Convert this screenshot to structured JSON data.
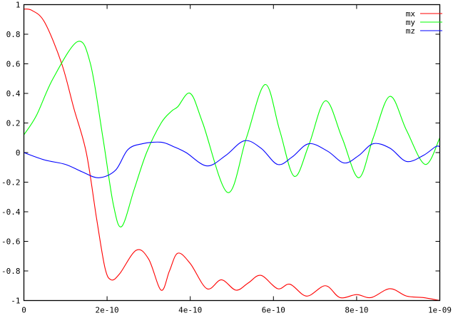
{
  "chart_data": {
    "type": "line",
    "title": "",
    "xlabel": "",
    "ylabel": "",
    "xlim": [
      0,
      1e-09
    ],
    "ylim": [
      -1,
      1
    ],
    "grid": false,
    "legend_placement": "top-right",
    "xticks": [
      0,
      2e-10,
      4e-10,
      6e-10,
      8e-10,
      1e-09
    ],
    "xtick_labels": [
      "0",
      "2e-10",
      "4e-10",
      "6e-10",
      "8e-10",
      "1e-09"
    ],
    "yticks": [
      -1,
      -0.8,
      -0.6,
      -0.4,
      -0.2,
      0,
      0.2,
      0.4,
      0.6,
      0.8,
      1
    ],
    "ytick_labels": [
      "-1",
      "-0.8",
      "-0.6",
      "-0.4",
      "-0.2",
      "0",
      "0.2",
      "0.4",
      "0.6",
      "0.8",
      "1"
    ],
    "series": [
      {
        "name": "mx",
        "color": "#ff0000",
        "x": [
          0,
          2,
          5,
          9.1,
          12,
          15,
          17.5,
          19.5,
          21,
          23,
          27,
          30,
          33,
          35,
          37,
          40,
          44,
          47.5,
          51,
          54,
          57,
          61,
          64,
          68,
          72.5,
          76,
          80,
          83.5,
          88,
          92,
          96,
          100
        ],
        "y": [
          0.97,
          0.96,
          0.88,
          0.6,
          0.3,
          0.0,
          -0.45,
          -0.78,
          -0.86,
          -0.82,
          -0.66,
          -0.72,
          -0.93,
          -0.8,
          -0.68,
          -0.75,
          -0.92,
          -0.86,
          -0.93,
          -0.88,
          -0.83,
          -0.92,
          -0.89,
          -0.97,
          -0.9,
          -0.98,
          -0.96,
          -0.98,
          -0.92,
          -0.97,
          -0.98,
          -1.0
        ]
      },
      {
        "name": "my",
        "color": "#00ff00",
        "x": [
          0,
          3,
          7,
          12.9,
          16,
          19,
          21.5,
          23.5,
          26.5,
          29.5,
          33,
          35.5,
          37,
          40,
          43,
          49,
          53.5,
          58,
          61.5,
          65,
          68.5,
          72.5,
          76.5,
          80.5,
          84,
          88,
          92,
          96.5,
          100
        ],
        "y": [
          0.12,
          0.25,
          0.5,
          0.75,
          0.6,
          0.1,
          -0.35,
          -0.5,
          -0.25,
          0.0,
          0.2,
          0.28,
          0.31,
          0.4,
          0.2,
          -0.27,
          0.1,
          0.46,
          0.15,
          -0.16,
          0.05,
          0.35,
          0.1,
          -0.17,
          0.1,
          0.38,
          0.15,
          -0.08,
          0.1
        ]
      },
      {
        "name": "mz",
        "color": "#0000ff",
        "x": [
          0,
          5,
          10,
          14,
          18,
          22,
          25,
          28.5,
          33,
          36,
          39,
          44,
          48.5,
          53,
          57,
          61,
          64.5,
          68.5,
          73,
          77,
          80.5,
          84,
          88,
          92,
          96,
          99,
          100
        ],
        "y": [
          0,
          -0.05,
          -0.08,
          -0.13,
          -0.17,
          -0.12,
          0.02,
          0.06,
          0.07,
          0.04,
          0.0,
          -0.09,
          -0.02,
          0.08,
          0.03,
          -0.08,
          -0.03,
          0.06,
          0.01,
          -0.07,
          -0.02,
          0.06,
          0.03,
          -0.06,
          -0.02,
          0.04,
          0.04
        ]
      }
    ]
  }
}
